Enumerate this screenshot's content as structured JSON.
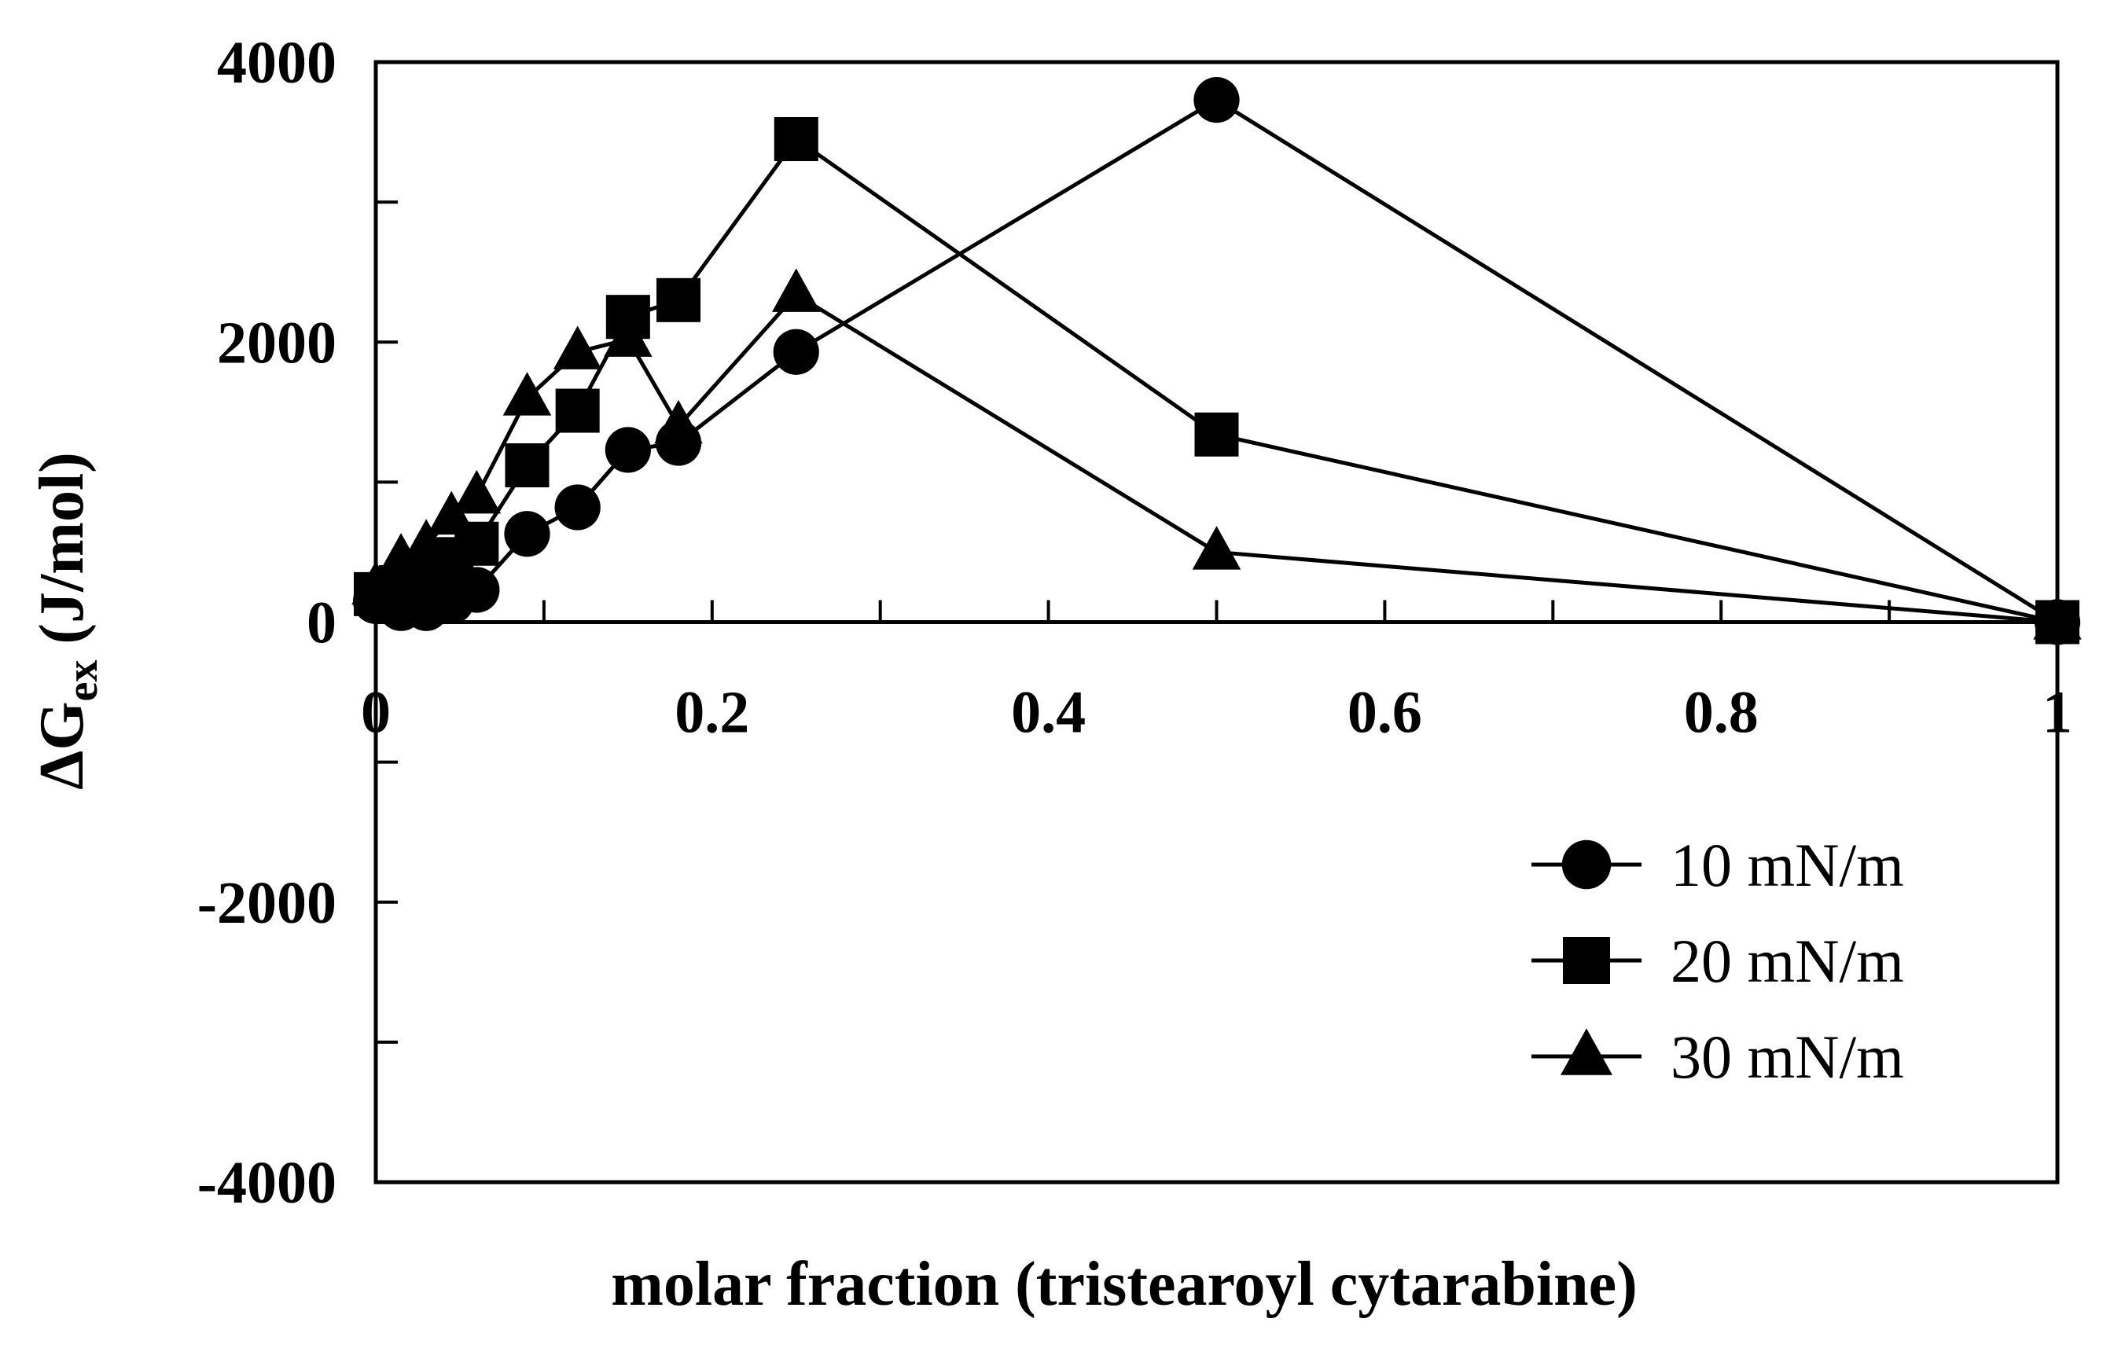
{
  "chart_data": {
    "type": "line",
    "title": "",
    "xlabel": "molar fraction  (tristearoyl cytarabine)",
    "ylabel": {
      "main": "ΔG",
      "sub": "ex",
      "unit": " (J/mol)"
    },
    "xlim": [
      0,
      1
    ],
    "ylim": [
      -4000,
      4000
    ],
    "x_ticks": [
      0,
      0.2,
      0.4,
      0.6,
      0.8,
      1
    ],
    "x_tick_labels": [
      "0",
      "0.2",
      "0.4",
      "0.6",
      "0.8",
      "1"
    ],
    "x_minor_ticks": [
      0.1,
      0.3,
      0.5,
      0.7,
      0.9
    ],
    "y_ticks": [
      -4000,
      -2000,
      0,
      2000,
      4000
    ],
    "y_tick_labels": [
      "-4000",
      "-2000",
      "0",
      "2000",
      "4000"
    ],
    "y_minor_ticks": [
      -3000,
      -1000,
      1000,
      3000
    ],
    "legend_position": "bottom-right",
    "series": [
      {
        "name": "10 mN/m",
        "marker": "circle",
        "x": [
          0,
          0.015,
          0.03,
          0.045,
          0.06,
          0.09,
          0.12,
          0.15,
          0.18,
          0.25,
          0.5,
          1
        ],
        "y": [
          150,
          100,
          100,
          150,
          230,
          630,
          820,
          1230,
          1280,
          1930,
          3730,
          0
        ]
      },
      {
        "name": "20 mN/m",
        "marker": "square",
        "x": [
          0,
          0.015,
          0.03,
          0.045,
          0.06,
          0.09,
          0.12,
          0.15,
          0.18,
          0.25,
          0.5,
          1
        ],
        "y": [
          200,
          250,
          350,
          450,
          560,
          1120,
          1510,
          2180,
          2300,
          3450,
          1340,
          0
        ]
      },
      {
        "name": "30 mN/m",
        "marker": "triangle",
        "x": [
          0,
          0.015,
          0.03,
          0.045,
          0.06,
          0.09,
          0.12,
          0.15,
          0.18,
          0.25,
          0.5,
          1
        ],
        "y": [
          250,
          450,
          550,
          750,
          900,
          1600,
          1930,
          2020,
          1400,
          2340,
          500,
          0
        ]
      }
    ]
  }
}
